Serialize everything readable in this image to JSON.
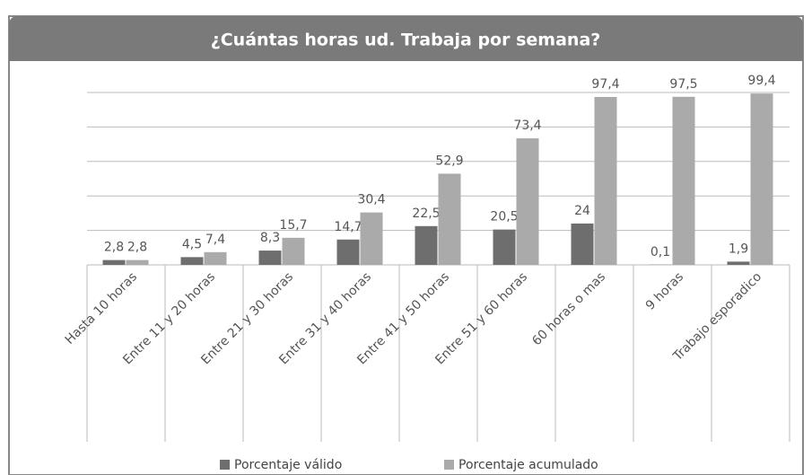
{
  "chart_data": {
    "type": "bar",
    "title": "¿Cuántas horas ud. Trabaja por semana?",
    "categories": [
      "Hasta 10 horas",
      "Entre 11 y 20 horas",
      "Entre 21 y 30 horas",
      "Entre 31 y 40 horas",
      "Entre 41 y 50 horas",
      "Entre 51 y 60 horas",
      "60 horas o mas",
      "9 horas",
      "Trabajo esporadico"
    ],
    "series": [
      {
        "name": "Porcentaje válido",
        "color": "#6e6e6e",
        "values": [
          2.8,
          4.5,
          8.3,
          14.7,
          22.5,
          20.5,
          24,
          0.1,
          1.9
        ],
        "value_labels": [
          "2,8",
          "4,5",
          "8,3",
          "14,7",
          "22,5",
          "20,5",
          "24",
          "0,1",
          "1,9"
        ]
      },
      {
        "name": "Porcentaje acumulado",
        "color": "#aaaaaa",
        "values": [
          2.8,
          7.4,
          15.7,
          30.4,
          52.9,
          73.4,
          97.4,
          97.5,
          99.4
        ],
        "value_labels": [
          "2,8",
          "7,4",
          "15,7",
          "30,4",
          "52,9",
          "73,4",
          "97,4",
          "97,5",
          "99,4"
        ]
      }
    ],
    "ylim": [
      0,
      100
    ],
    "yticks": [
      0,
      20,
      40,
      60,
      80,
      100
    ],
    "grid": true,
    "legend": "bottom"
  }
}
